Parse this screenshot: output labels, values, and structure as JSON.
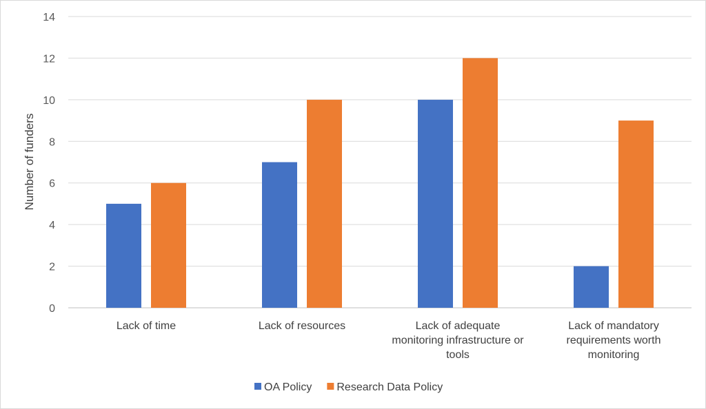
{
  "chart_data": {
    "type": "bar",
    "title": "",
    "xlabel": "",
    "ylabel": "Number  of funders",
    "ylim": [
      0,
      14
    ],
    "yticks": [
      0,
      2,
      4,
      6,
      8,
      10,
      12,
      14
    ],
    "grid": true,
    "legend_position": "bottom",
    "categories": [
      [
        "Lack of time"
      ],
      [
        "Lack of resources"
      ],
      [
        "Lack of adequate",
        "monitoring infrastructure or",
        "tools"
      ],
      [
        "Lack of mandatory",
        "requirements worth",
        "monitoring"
      ]
    ],
    "series": [
      {
        "name": "OA Policy",
        "color": "#4472c4",
        "values": [
          5,
          7,
          10,
          2
        ]
      },
      {
        "name": "Research Data Policy",
        "color": "#ed7d31",
        "values": [
          6,
          10,
          12,
          9
        ]
      }
    ]
  }
}
